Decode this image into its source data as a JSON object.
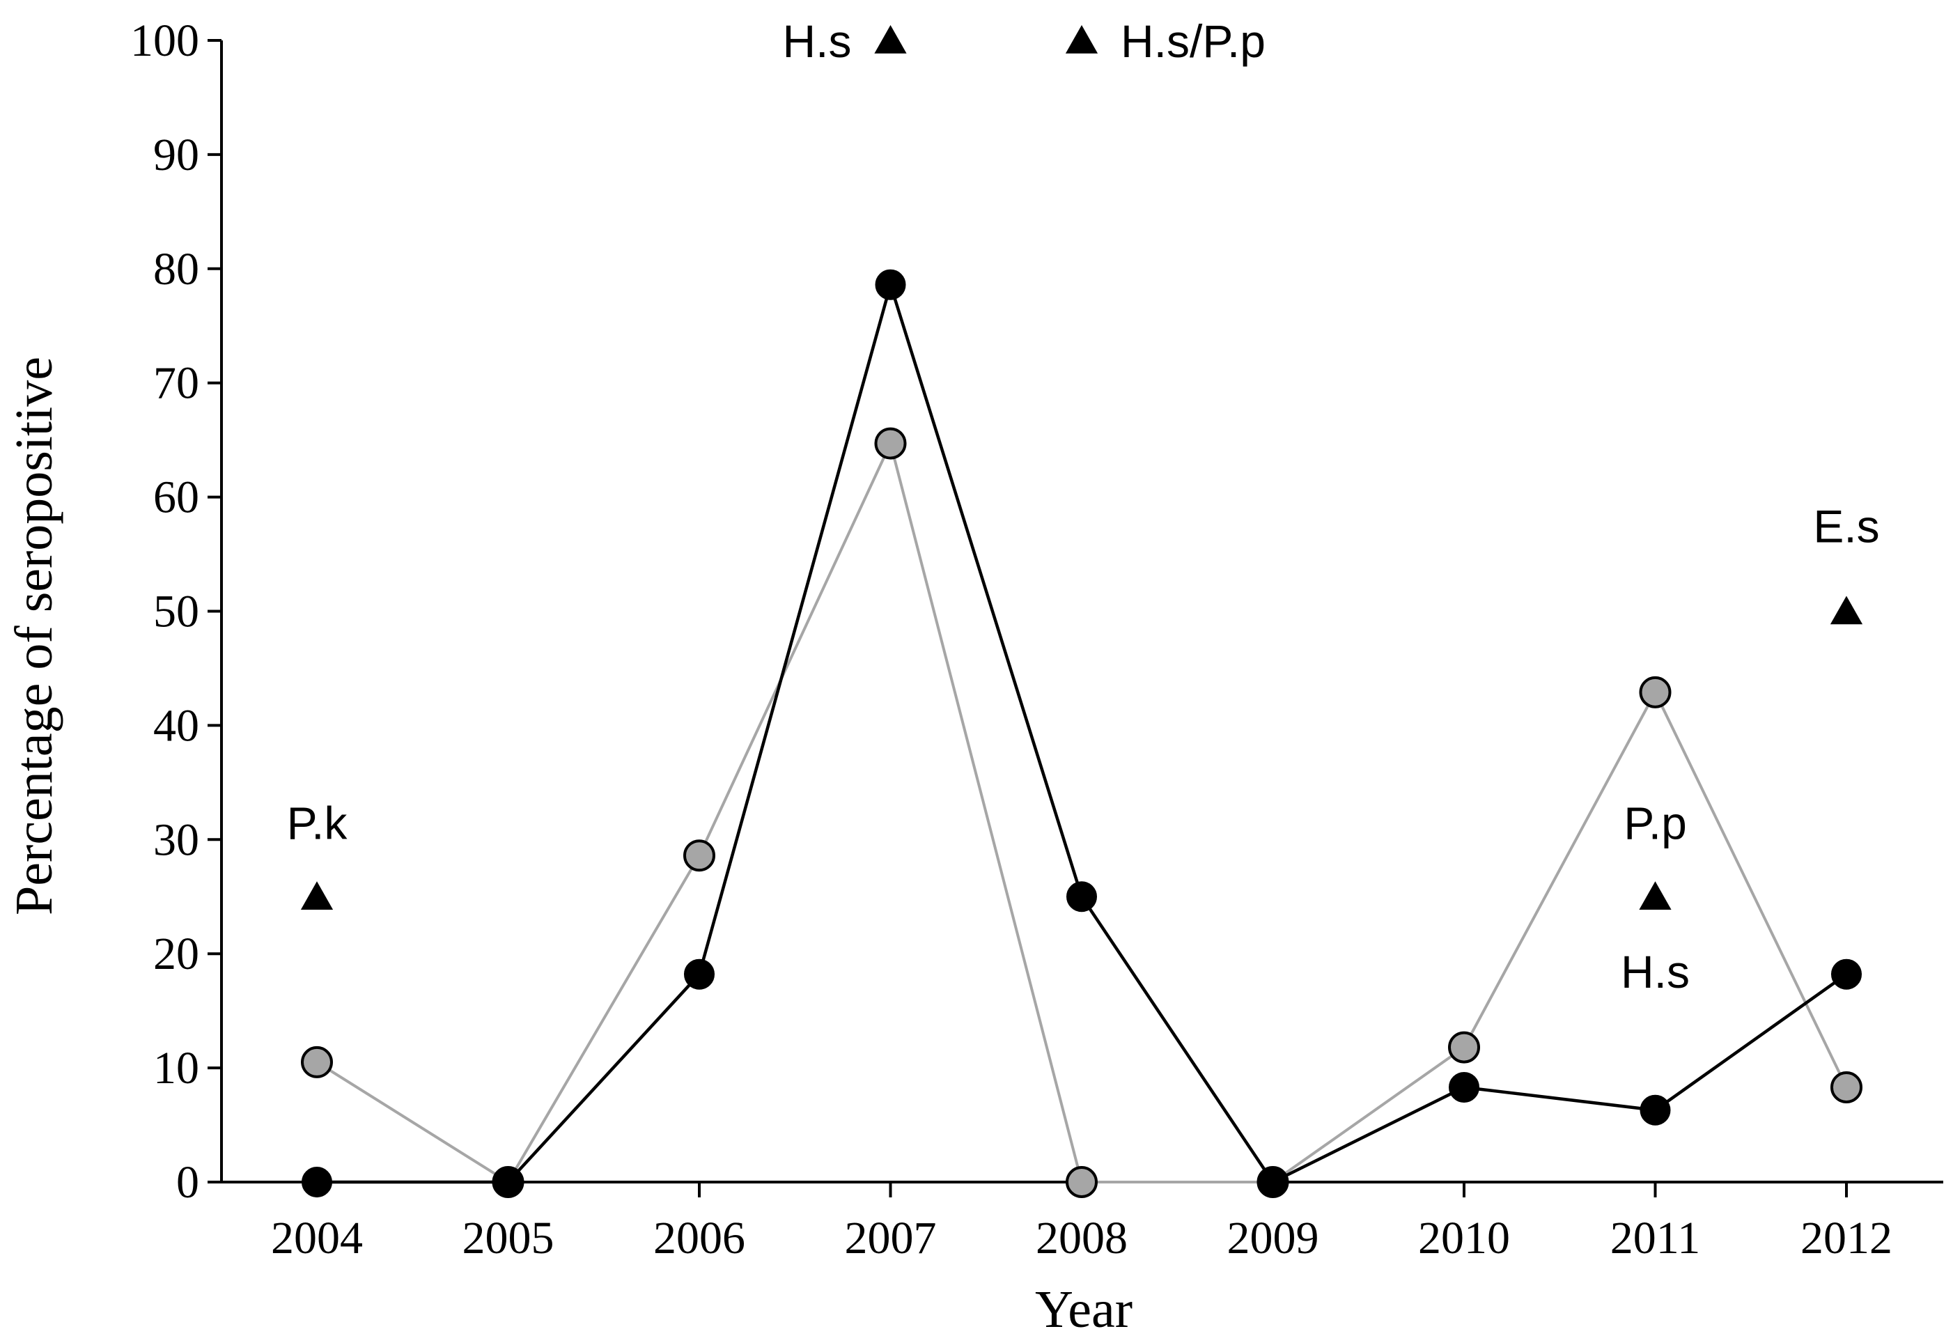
{
  "chart_data": {
    "type": "line",
    "xlabel": "Year",
    "ylabel": "Percentage of seropositive",
    "x": [
      "2004",
      "2005",
      "2006",
      "2007",
      "2008",
      "2009",
      "2010",
      "2011",
      "2012"
    ],
    "ylim": [
      0,
      100
    ],
    "yticks": [
      0,
      10,
      20,
      30,
      40,
      50,
      60,
      70,
      80,
      90,
      100
    ],
    "grid": false,
    "series": [
      {
        "marker": "black-circle",
        "color": "#000000",
        "values": [
          0,
          0,
          18.2,
          78.6,
          25.0,
          0,
          8.3,
          6.3,
          18.2
        ]
      },
      {
        "marker": "gray-circle",
        "color": "#a6a6a6",
        "values": [
          10.5,
          0,
          28.6,
          64.7,
          0,
          0,
          11.8,
          42.9,
          8.3
        ]
      }
    ],
    "triangle_markers": [
      {
        "x": "2004",
        "y": 25
      },
      {
        "x": "2007",
        "y": 100
      },
      {
        "x": "2008",
        "y": 100
      },
      {
        "x": "2011",
        "y": 25
      },
      {
        "x": "2012",
        "y": 50
      }
    ],
    "annotations": [
      {
        "text": "P.k",
        "x": "2004",
        "y": 31.5,
        "anchor": "middle"
      },
      {
        "text": "H.s",
        "x": "2007",
        "y": 100,
        "anchor": "end"
      },
      {
        "text": "H.s/P.p",
        "x": "2008",
        "y": 100,
        "anchor": "start"
      },
      {
        "text": "P.p",
        "x": "2011",
        "y": 31.5,
        "anchor": "middle"
      },
      {
        "text": "H.s",
        "x": "2011",
        "y": 18.5,
        "anchor": "middle"
      },
      {
        "text": "E.s",
        "x": "2012",
        "y": 57.5,
        "anchor": "middle"
      }
    ]
  }
}
